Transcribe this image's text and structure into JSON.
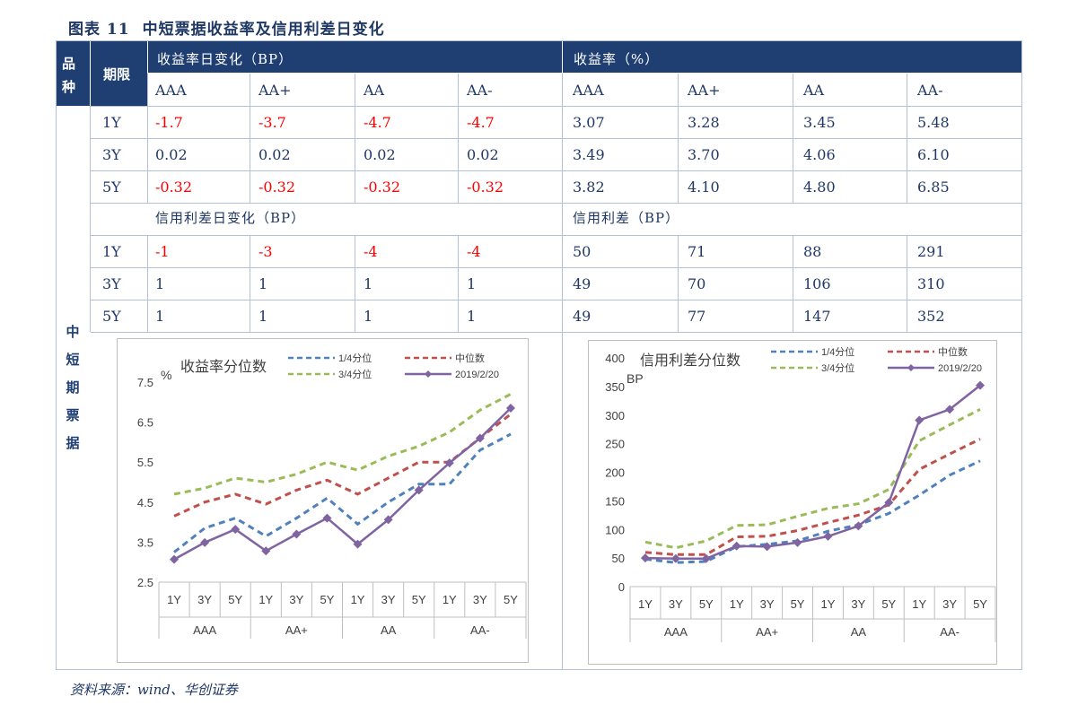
{
  "figure": {
    "label": "图表 11",
    "title": "中短票据收益率及信用利差日变化"
  },
  "table": {
    "header_variety": "品种",
    "header_term": "期限",
    "header_yield_change": "收益率日变化（BP）",
    "header_yield": "收益率（%）",
    "ratings": [
      "AAA",
      "AA+",
      "AA",
      "AA-"
    ],
    "variety_name": "中短期票据",
    "yield_rows": [
      {
        "term": "1Y",
        "change": [
          "-1.7",
          "-3.7",
          "-4.7",
          "-4.7"
        ],
        "level": [
          "3.07",
          "3.28",
          "3.45",
          "5.48"
        ]
      },
      {
        "term": "3Y",
        "change": [
          "0.02",
          "0.02",
          "0.02",
          "0.02"
        ],
        "level": [
          "3.49",
          "3.70",
          "4.06",
          "6.10"
        ]
      },
      {
        "term": "5Y",
        "change": [
          "-0.32",
          "-0.32",
          "-0.32",
          "-0.32"
        ],
        "level": [
          "3.82",
          "4.10",
          "4.80",
          "6.85"
        ]
      }
    ],
    "spread_change_header": "信用利差日变化（BP）",
    "spread_header": "信用利差（BP）",
    "spread_rows": [
      {
        "term": "1Y",
        "change": [
          "-1",
          "-3",
          "-4",
          "-4"
        ],
        "level": [
          "50",
          "71",
          "88",
          "291"
        ]
      },
      {
        "term": "3Y",
        "change": [
          "1",
          "1",
          "1",
          "1"
        ],
        "level": [
          "49",
          "70",
          "106",
          "310"
        ]
      },
      {
        "term": "5Y",
        "change": [
          "1",
          "1",
          "1",
          "1"
        ],
        "level": [
          "49",
          "77",
          "147",
          "352"
        ]
      }
    ]
  },
  "colors": {
    "header_bg": "#1f3f73",
    "negative": "#ff0000",
    "q1": "#4f81bd",
    "median": "#c0504d",
    "q3": "#9bbb59",
    "current": "#8064a2"
  },
  "chart_data": [
    {
      "type": "line",
      "title": "收益率分位数",
      "ylabel": "%",
      "ylim": [
        2.5,
        7.5
      ],
      "yticks": [
        "2.5",
        "3.5",
        "4.5",
        "5.5",
        "6.5",
        "7.5"
      ],
      "categories": [
        "1Y",
        "3Y",
        "5Y",
        "1Y",
        "3Y",
        "5Y",
        "1Y",
        "3Y",
        "5Y",
        "1Y",
        "3Y",
        "5Y"
      ],
      "groups": [
        "AAA",
        "AA+",
        "AA",
        "AA-"
      ],
      "legend_position": "top",
      "series": [
        {
          "name": "1/4分位",
          "values": [
            3.25,
            3.85,
            4.1,
            3.65,
            4.1,
            4.6,
            3.95,
            4.5,
            4.95,
            4.95,
            5.8,
            6.2
          ]
        },
        {
          "name": "中位数",
          "values": [
            4.15,
            4.5,
            4.7,
            4.45,
            4.8,
            5.05,
            4.7,
            5.1,
            5.5,
            5.5,
            6.1,
            6.7
          ]
        },
        {
          "name": "3/4分位",
          "values": [
            4.7,
            4.85,
            5.1,
            5.0,
            5.2,
            5.5,
            5.3,
            5.65,
            5.9,
            6.25,
            6.8,
            7.2
          ]
        },
        {
          "name": "2019/2/20",
          "values": [
            3.07,
            3.49,
            3.82,
            3.28,
            3.7,
            4.1,
            3.45,
            4.06,
            4.8,
            5.48,
            6.1,
            6.85
          ]
        }
      ]
    },
    {
      "type": "line",
      "title": "信用利差分位数",
      "ylabel": "BP",
      "ylim": [
        0,
        400
      ],
      "yticks": [
        "0",
        "50",
        "100",
        "150",
        "200",
        "250",
        "300",
        "350",
        "400"
      ],
      "categories": [
        "1Y",
        "3Y",
        "5Y",
        "1Y",
        "3Y",
        "5Y",
        "1Y",
        "3Y",
        "5Y",
        "1Y",
        "3Y",
        "5Y"
      ],
      "groups": [
        "AAA",
        "AA+",
        "AA",
        "AA-"
      ],
      "legend_position": "top",
      "series": [
        {
          "name": "1/4分位",
          "values": [
            48,
            42,
            44,
            70,
            74,
            80,
            97,
            108,
            128,
            160,
            195,
            220
          ]
        },
        {
          "name": "中位数",
          "values": [
            60,
            56,
            56,
            87,
            88,
            98,
            112,
            125,
            143,
            205,
            232,
            258
          ]
        },
        {
          "name": "3/4分位",
          "values": [
            78,
            68,
            80,
            107,
            108,
            123,
            137,
            145,
            170,
            255,
            283,
            310
          ]
        },
        {
          "name": "2019/2/20",
          "values": [
            50,
            49,
            49,
            71,
            70,
            77,
            88,
            106,
            147,
            291,
            310,
            352
          ]
        }
      ]
    }
  ],
  "source": "资料来源：wind、华创证券"
}
